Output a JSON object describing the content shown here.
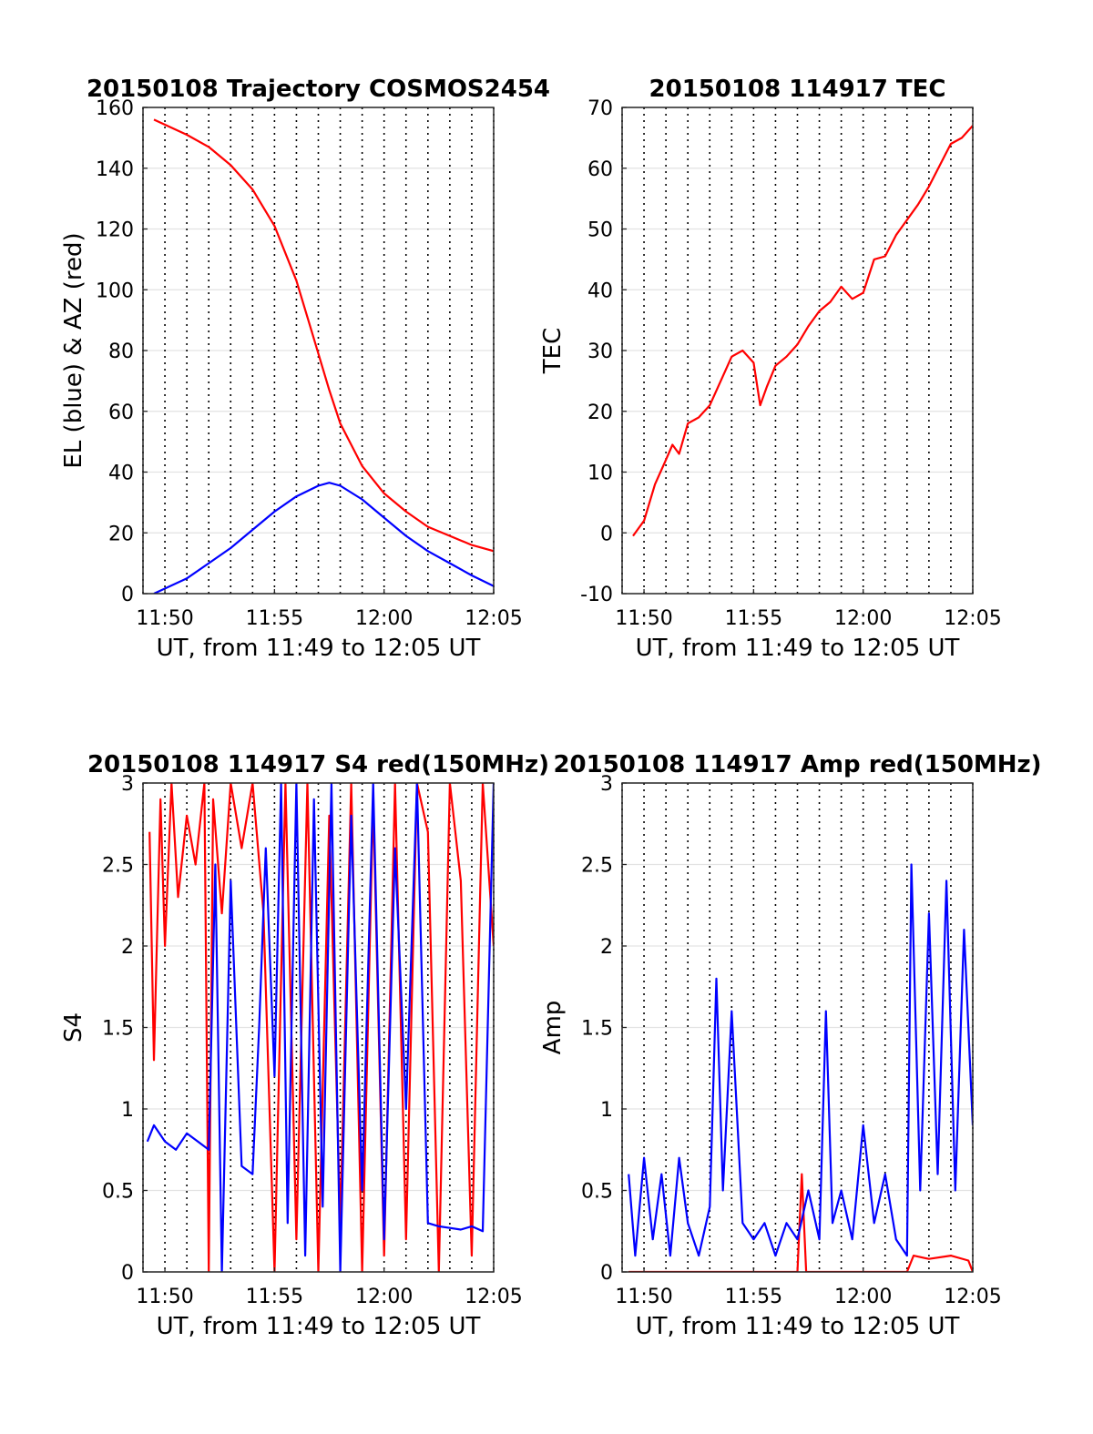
{
  "figure": {
    "x_axis_tick_labels": [
      "11:50",
      "11:55",
      "12:00",
      "12:05"
    ]
  },
  "chart_data": [
    {
      "type": "line",
      "title": "20150108 Trajectory COSMOS2454",
      "xlabel": "UT, from 11:49 to 12:05 UT",
      "ylabel": "EL (blue) & AZ (red)",
      "xlim": [
        "11:49",
        "12:05"
      ],
      "ylim": [
        0,
        160
      ],
      "yticks": [
        "0",
        "20",
        "40",
        "60",
        "80",
        "100",
        "120",
        "140",
        "160"
      ],
      "xticks": [
        "11:50",
        "11:55",
        "12:00",
        "12:05"
      ],
      "grid": "x dotted, y solid light",
      "series": [
        {
          "color": "#ff0000",
          "x": [
            "11:49.5",
            "11:51",
            "11:52",
            "11:53",
            "11:54",
            "11:55",
            "11:56",
            "11:56.5",
            "11:57",
            "11:57.5",
            "11:58",
            "11:59",
            "12:00",
            "12:01",
            "12:02",
            "12:03",
            "12:04",
            "12:05"
          ],
          "values": [
            156,
            151,
            147,
            141,
            133,
            121,
            103,
            91,
            79,
            67,
            56,
            42,
            33,
            27,
            22,
            19,
            16,
            14
          ]
        },
        {
          "color": "#0000ff",
          "x": [
            "11:49.5",
            "11:51",
            "11:52",
            "11:53",
            "11:54",
            "11:55",
            "11:56",
            "11:57",
            "11:57.5",
            "11:58",
            "11:59",
            "12:00",
            "12:01",
            "12:02",
            "12:03",
            "12:04",
            "12:05"
          ],
          "values": [
            0,
            5,
            10,
            15,
            21,
            27,
            32,
            35.5,
            36.5,
            35.5,
            31,
            25,
            19,
            14,
            10,
            6,
            2.5
          ]
        }
      ]
    },
    {
      "type": "line",
      "title": "20150108 114917 TEC",
      "xlabel": "UT, from 11:49 to 12:05 UT",
      "ylabel": "TEC",
      "xlim": [
        "11:49",
        "12:05"
      ],
      "ylim": [
        -10,
        70
      ],
      "yticks": [
        "-10",
        "0",
        "10",
        "20",
        "30",
        "40",
        "50",
        "60",
        "70"
      ],
      "xticks": [
        "11:50",
        "11:55",
        "12:00",
        "12:05"
      ],
      "grid": "x dotted, y solid light",
      "series": [
        {
          "color": "#ff0000",
          "x": [
            "11:49.5",
            "11:50",
            "11:50.5",
            "11:51",
            "11:51.3",
            "11:51.6",
            "11:52",
            "11:52.5",
            "11:53",
            "11:53.5",
            "11:54",
            "11:54.5",
            "11:55",
            "11:55.3",
            "11:55.6",
            "11:56",
            "11:56.5",
            "11:57",
            "11:57.5",
            "11:58",
            "11:58.5",
            "11:59",
            "11:59.5",
            "12:00",
            "12:00.5",
            "12:01",
            "12:01.5",
            "12:02",
            "12:02.5",
            "12:03",
            "12:03.5",
            "12:04",
            "12:04.5",
            "12:05"
          ],
          "values": [
            -0.5,
            2,
            8,
            12,
            14.5,
            13,
            18,
            19,
            21,
            25,
            29,
            30,
            28,
            21,
            24,
            27.5,
            29,
            31,
            34,
            36.5,
            38,
            40.5,
            38.5,
            39.5,
            45,
            45.5,
            49,
            51.5,
            54,
            57,
            60.5,
            64,
            65,
            67
          ]
        }
      ]
    },
    {
      "type": "line",
      "title": "20150108 114917 S4 red(150MHz)",
      "xlabel": "UT, from 11:49 to 12:05 UT",
      "ylabel": "S4",
      "xlim": [
        "11:49",
        "12:05"
      ],
      "ylim": [
        0,
        3
      ],
      "yticks": [
        "0",
        "0.5",
        "1",
        "1.5",
        "2",
        "2.5",
        "3"
      ],
      "xticks": [
        "11:50",
        "11:55",
        "12:00",
        "12:05"
      ],
      "grid": "x dotted, y solid light",
      "series": [
        {
          "color": "#ff0000",
          "x": [
            "11:49.3",
            "11:49.5",
            "11:49.8",
            "11:50",
            "11:50.3",
            "11:50.6",
            "11:51",
            "11:51.4",
            "11:51.8",
            "11:52",
            "11:52.2",
            "11:52.6",
            "11:53",
            "11:53.5",
            "11:54",
            "11:54.5",
            "11:55",
            "11:55.5",
            "11:56",
            "11:56.5",
            "11:57",
            "11:57.5",
            "11:58",
            "11:58.5",
            "11:59",
            "11:59.5",
            "12:00",
            "12:00.5",
            "12:01",
            "12:01.5",
            "12:02",
            "12:02.5",
            "12:03",
            "12:03.5",
            "12:04",
            "12:04.5",
            "12:05"
          ],
          "values": [
            2.7,
            1.3,
            2.9,
            2.0,
            3.0,
            2.3,
            2.8,
            2.5,
            3.0,
            0,
            2.9,
            2.2,
            3.0,
            2.6,
            3.0,
            2.2,
            0,
            3.0,
            0.2,
            3.0,
            0,
            2.8,
            0.3,
            3.0,
            0,
            2.9,
            0.1,
            3.0,
            0.2,
            3.0,
            2.7,
            0,
            3.0,
            2.4,
            0.1,
            3.0,
            2.0
          ]
        },
        {
          "color": "#0000ff",
          "x": [
            "11:49.2",
            "11:49.5",
            "11:50",
            "11:50.5",
            "11:51",
            "11:51.5",
            "11:52",
            "11:52.3",
            "11:52.6",
            "11:53",
            "11:53.5",
            "11:54",
            "11:54.3",
            "11:54.6",
            "11:55",
            "11:55.3",
            "11:55.6",
            "11:56",
            "11:56.4",
            "11:56.8",
            "11:57.2",
            "11:57.6",
            "11:58",
            "11:58.5",
            "11:59",
            "11:59.5",
            "12:00",
            "12:00.5",
            "12:01",
            "12:01.5",
            "12:02",
            "12:02.5",
            "12:03",
            "12:03.5",
            "12:04",
            "12:04.5",
            "12:05"
          ],
          "values": [
            0.8,
            0.9,
            0.8,
            0.75,
            0.85,
            0.8,
            0.75,
            2.5,
            0,
            2.4,
            0.65,
            0.6,
            1.5,
            2.6,
            1.2,
            3.0,
            0.3,
            3.0,
            0.1,
            2.9,
            0.4,
            3.0,
            0,
            2.8,
            0.5,
            3.0,
            0.2,
            2.6,
            1.0,
            3.0,
            0.3,
            0.28,
            0.27,
            0.26,
            0.28,
            0.25,
            3.0
          ]
        }
      ]
    },
    {
      "type": "line",
      "title": "20150108 114917 Amp red(150MHz)",
      "xlabel": "UT, from 11:49 to 12:05 UT",
      "ylabel": "Amp",
      "xlim": [
        "11:49",
        "12:05"
      ],
      "ylim": [
        0,
        3
      ],
      "yticks": [
        "0",
        "0.5",
        "1",
        "1.5",
        "2",
        "2.5",
        "3"
      ],
      "xticks": [
        "11:50",
        "11:55",
        "12:00",
        "12:05"
      ],
      "grid": "x dotted, y solid light",
      "series": [
        {
          "color": "#ff0000",
          "x": [
            "11:49.3",
            "11:57",
            "11:57.2",
            "11:57.4",
            "11:58",
            "12:02",
            "12:02.3",
            "12:03",
            "12:04",
            "12:04.8",
            "12:05"
          ],
          "values": [
            0,
            0,
            0.6,
            0,
            0,
            0,
            0.1,
            0.08,
            0.1,
            0.07,
            0
          ]
        },
        {
          "color": "#0000ff",
          "x": [
            "11:49.3",
            "11:49.6",
            "11:50",
            "11:50.4",
            "11:50.8",
            "11:51.2",
            "11:51.6",
            "11:52",
            "11:52.5",
            "11:53",
            "11:53.3",
            "11:53.6",
            "11:54",
            "11:54.5",
            "11:55",
            "11:55.5",
            "11:56",
            "11:56.5",
            "11:57",
            "11:57.5",
            "11:58",
            "11:58.3",
            "11:58.6",
            "11:59",
            "11:59.5",
            "12:00",
            "12:00.5",
            "12:01",
            "12:01.5",
            "12:02",
            "12:02.2",
            "12:02.6",
            "12:03",
            "12:03.4",
            "12:03.8",
            "12:04.2",
            "12:04.6",
            "12:05"
          ],
          "values": [
            0.6,
            0.1,
            0.7,
            0.2,
            0.6,
            0.1,
            0.7,
            0.3,
            0.1,
            0.4,
            1.8,
            0.5,
            1.6,
            0.3,
            0.2,
            0.3,
            0.1,
            0.3,
            0.2,
            0.5,
            0.2,
            1.6,
            0.3,
            0.5,
            0.2,
            0.9,
            0.3,
            0.6,
            0.2,
            0.1,
            2.5,
            0.5,
            2.2,
            0.6,
            2.4,
            0.5,
            2.1,
            0.9
          ]
        }
      ]
    }
  ]
}
